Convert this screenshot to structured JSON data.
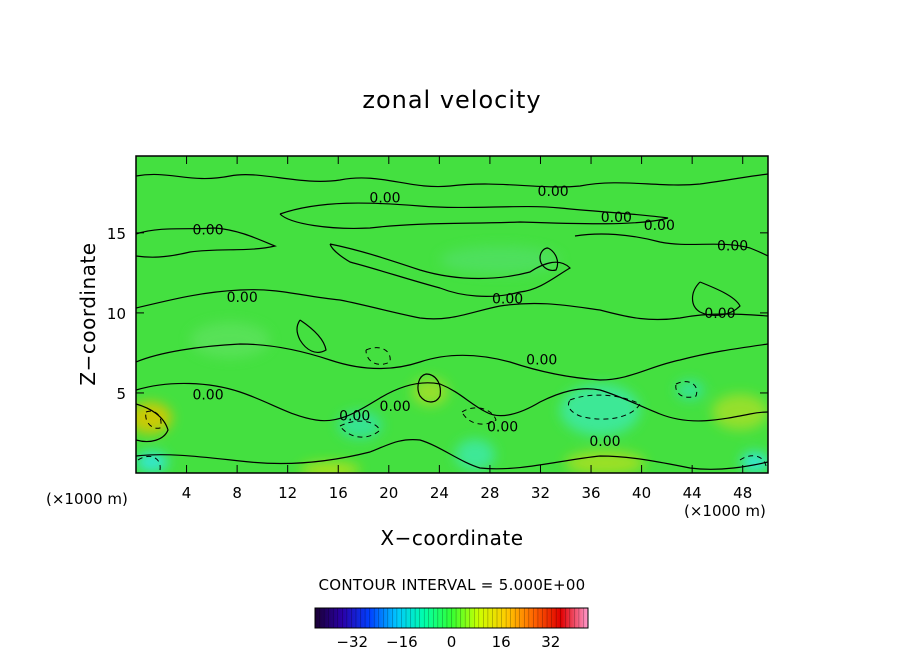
{
  "chart_data": {
    "type": "heatmap",
    "title": "zonal velocity",
    "xlabel": "X−coordinate",
    "ylabel": "Z−coordinate",
    "x_unit_left": "(×1000 m)",
    "x_unit_right": "(×1000 m)",
    "x_ticks": [
      "4",
      "8",
      "12",
      "16",
      "20",
      "24",
      "28",
      "32",
      "36",
      "40",
      "44",
      "48"
    ],
    "x_tick_values": [
      4,
      8,
      12,
      16,
      20,
      24,
      28,
      32,
      36,
      40,
      44,
      48
    ],
    "y_ticks": [
      "5",
      "10",
      "15"
    ],
    "y_tick_values": [
      5,
      10,
      15
    ],
    "xlim": [
      0,
      50
    ],
    "ylim": [
      0,
      19.8
    ],
    "contour_interval_text": "CONTOUR INTERVAL = 5.000E+00",
    "contour_labels": [
      {
        "text": "0.00",
        "x": 19.7,
        "z": 17.2
      },
      {
        "text": "0.00",
        "x": 33.0,
        "z": 17.6
      },
      {
        "text": "0.00",
        "x": 5.7,
        "z": 15.2
      },
      {
        "text": "0.00",
        "x": 38.0,
        "z": 16.0
      },
      {
        "text": "0.00",
        "x": 41.4,
        "z": 15.5
      },
      {
        "text": "0.00",
        "x": 47.2,
        "z": 14.2
      },
      {
        "text": "0.00",
        "x": 8.4,
        "z": 11.0
      },
      {
        "text": "0.00",
        "x": 29.4,
        "z": 10.9
      },
      {
        "text": "0.00",
        "x": 46.2,
        "z": 10.0
      },
      {
        "text": "0.00",
        "x": 32.1,
        "z": 7.1
      },
      {
        "text": "0.00",
        "x": 5.7,
        "z": 4.9
      },
      {
        "text": "0.00",
        "x": 20.5,
        "z": 4.2
      },
      {
        "text": "0.00",
        "x": 17.3,
        "z": 3.6
      },
      {
        "text": "0.00",
        "x": 29.0,
        "z": 2.9
      },
      {
        "text": "0.00",
        "x": 37.1,
        "z": 2.0
      }
    ],
    "colorbar": {
      "range": [
        -44,
        44
      ],
      "tick_labels": [
        "−32",
        "−16",
        "0",
        "16",
        "32"
      ],
      "tick_values": [
        -32,
        -16,
        0,
        16,
        32
      ],
      "colors": [
        "#1a0033",
        "#2a00a8",
        "#0040ff",
        "#00c8ff",
        "#00ffaa",
        "#33ff33",
        "#ccff00",
        "#ffcc00",
        "#ff6600",
        "#e00000",
        "#ff99cc"
      ]
    },
    "dominant_color": "#44e040",
    "grid": false
  }
}
